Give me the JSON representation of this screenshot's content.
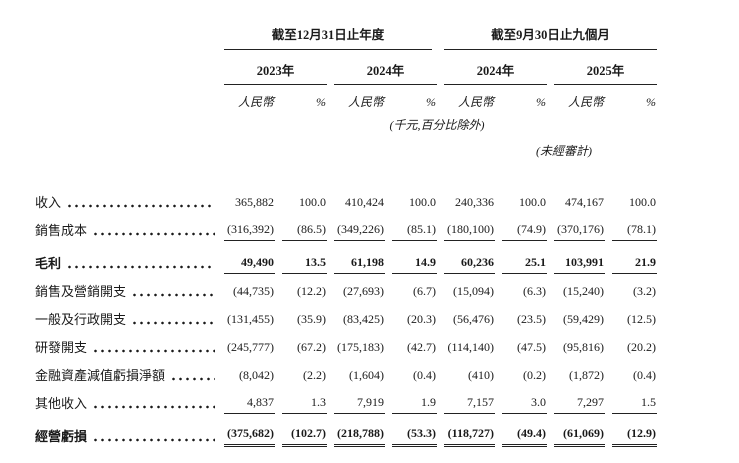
{
  "table": {
    "header": {
      "groups": [
        {
          "title": "截至12月31日止年度",
          "years": [
            "2023年",
            "2024年"
          ]
        },
        {
          "title": "截至9月30日止九個月",
          "years": [
            "2024年",
            "2025年"
          ]
        }
      ],
      "currency_label": "人民幣",
      "percent_label": "%",
      "unit_note": "(千元,百分比除外)",
      "unaudited_note": "(未經審計)"
    },
    "rows": [
      {
        "label": "收入",
        "values": [
          "365,882",
          "100.0",
          "410,424",
          "100.0",
          "240,336",
          "100.0",
          "474,167",
          "100.0"
        ]
      },
      {
        "label": "銷售成本",
        "values": [
          "(316,392)",
          "(86.5)",
          "(349,226)",
          "(85.1)",
          "(180,100)",
          "(74.9)",
          "(370,176)",
          "(78.1)"
        ]
      },
      {
        "label": "毛利",
        "values": [
          "49,490",
          "13.5",
          "61,198",
          "14.9",
          "60,236",
          "25.1",
          "103,991",
          "21.9"
        ]
      },
      {
        "label": "銷售及營銷開支",
        "values": [
          "(44,735)",
          "(12.2)",
          "(27,693)",
          "(6.7)",
          "(15,094)",
          "(6.3)",
          "(15,240)",
          "(3.2)"
        ]
      },
      {
        "label": "一般及行政開支",
        "values": [
          "(131,455)",
          "(35.9)",
          "(83,425)",
          "(20.3)",
          "(56,476)",
          "(23.5)",
          "(59,429)",
          "(12.5)"
        ]
      },
      {
        "label": "研發開支",
        "values": [
          "(245,777)",
          "(67.2)",
          "(175,183)",
          "(42.7)",
          "(114,140)",
          "(47.5)",
          "(95,816)",
          "(20.2)"
        ]
      },
      {
        "label": "金融資產減值虧損淨額",
        "values": [
          "(8,042)",
          "(2.2)",
          "(1,604)",
          "(0.4)",
          "(410)",
          "(0.2)",
          "(1,872)",
          "(0.4)"
        ]
      },
      {
        "label": "其他收入",
        "values": [
          "4,837",
          "1.3",
          "7,919",
          "1.9",
          "7,157",
          "3.0",
          "7,297",
          "1.5"
        ]
      },
      {
        "label": "經營虧損",
        "values": [
          "(375,682)",
          "(102.7)",
          "(218,788)",
          "(53.3)",
          "(118,727)",
          "(49.4)",
          "(61,069)",
          "(12.9)"
        ]
      }
    ]
  }
}
